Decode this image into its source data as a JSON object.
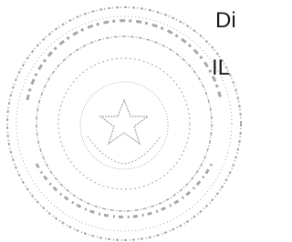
{
  "text": {
    "line1": "Di",
    "line2": "IL"
  }
}
